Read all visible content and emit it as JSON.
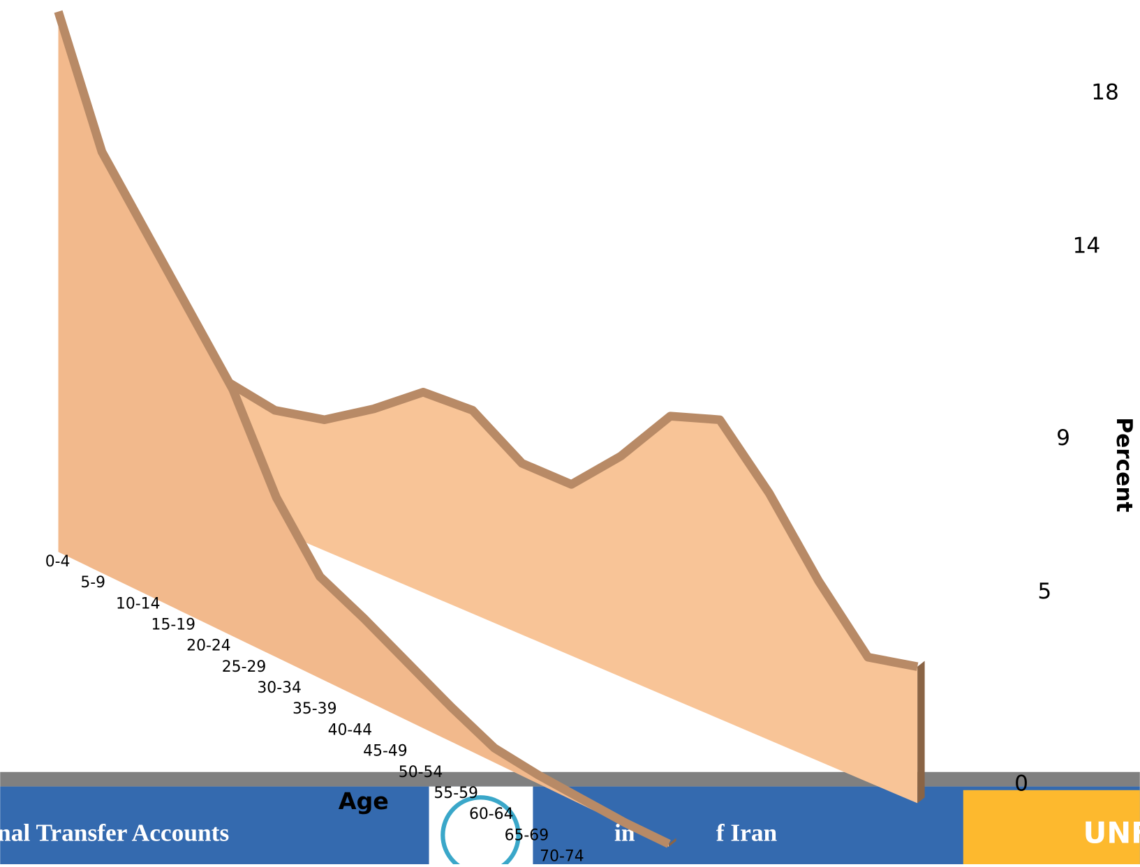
{
  "chart_data": {
    "type": "area",
    "x_label": "Age",
    "y_label": "Percent",
    "categories": [
      "0-4",
      "5-9",
      "10-14",
      "15-19",
      "20-24",
      "25-29",
      "30-34",
      "35-39",
      "40-44",
      "45-49",
      "50-54",
      "55-59",
      "60-64",
      "65-69",
      "70-74"
    ],
    "series": [
      {
        "color": "#f2b98c",
        "values": [
          18.6,
          14.5,
          12.5,
          10.5,
          8.5,
          5.5,
          3.5,
          2.8,
          2.0,
          1.2,
          0.5,
          0.3,
          0.2,
          0.1,
          0.1
        ]
      },
      {
        "color": "#f8c497",
        "values": [
          4.4,
          4.1,
          4.5,
          5.6,
          6.9,
          7.0,
          5.9,
          5.9,
          7.6,
          9.7,
          10.3,
          8.5,
          6.2,
          4.3,
          4.7
        ]
      }
    ],
    "ylim": [
      0,
      18
    ],
    "yticks": [
      0,
      5,
      9,
      14,
      18
    ]
  },
  "footer": {
    "left": "nal Transfer Accounts",
    "middle_a": "in",
    "middle_b": "f Iran",
    "logo_text": "UNF"
  }
}
